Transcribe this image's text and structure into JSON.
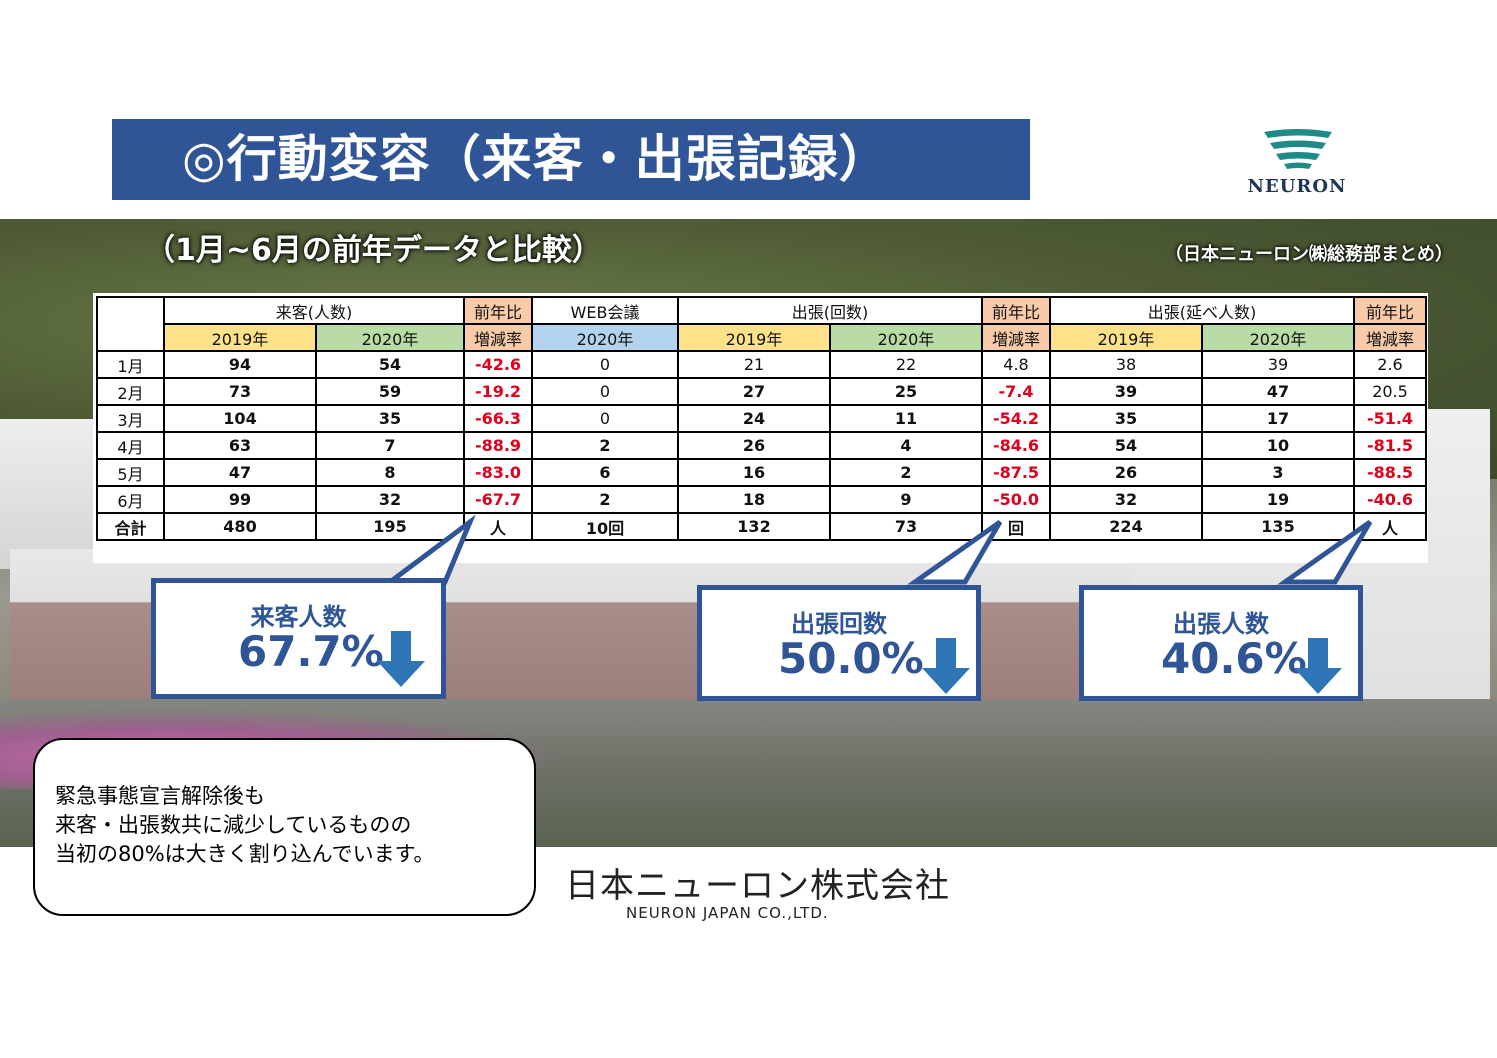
{
  "title": "◎行動変容（来客・出張記録）",
  "subtitle": "（1月~6月の前年データと比較）",
  "note": "（日本ニューロン㈱総務部まとめ）",
  "logo_text": "NEURON",
  "table": {
    "groups": {
      "visitors": "来客(人数)",
      "ratio": "前年比",
      "web": "WEB会議",
      "trips": "出張(回数)",
      "trip_people": "出張(延べ人数)"
    },
    "sub": {
      "y2019": "2019年",
      "y2020": "2020年",
      "rate": "増減率"
    },
    "rows": [
      {
        "month": "1月",
        "v19": "94",
        "v20": "54",
        "vr": "-42.6",
        "web": "0",
        "t19": "21",
        "t20": "22",
        "tr": "4.8",
        "p19": "38",
        "p20": "39",
        "pr": "2.6"
      },
      {
        "month": "2月",
        "v19": "73",
        "v20": "59",
        "vr": "-19.2",
        "web": "0",
        "t19": "27",
        "t20": "25",
        "tr": "-7.4",
        "p19": "39",
        "p20": "47",
        "pr": "20.5"
      },
      {
        "month": "3月",
        "v19": "104",
        "v20": "35",
        "vr": "-66.3",
        "web": "0",
        "t19": "24",
        "t20": "11",
        "tr": "-54.2",
        "p19": "35",
        "p20": "17",
        "pr": "-51.4"
      },
      {
        "month": "4月",
        "v19": "63",
        "v20": "7",
        "vr": "-88.9",
        "web": "2",
        "t19": "26",
        "t20": "4",
        "tr": "-84.6",
        "p19": "54",
        "p20": "10",
        "pr": "-81.5"
      },
      {
        "month": "5月",
        "v19": "47",
        "v20": "8",
        "vr": "-83.0",
        "web": "6",
        "t19": "16",
        "t20": "2",
        "tr": "-87.5",
        "p19": "26",
        "p20": "3",
        "pr": "-88.5"
      },
      {
        "month": "6月",
        "v19": "99",
        "v20": "32",
        "vr": "-67.7",
        "web": "2",
        "t19": "18",
        "t20": "9",
        "tr": "-50.0",
        "p19": "32",
        "p20": "19",
        "pr": "-40.6"
      }
    ],
    "total": {
      "label": "合計",
      "v19": "480",
      "v20": "195",
      "vr": "人",
      "web": "10回",
      "t19": "132",
      "t20": "73",
      "tr": "回",
      "p19": "224",
      "p20": "135",
      "pr": "人"
    }
  },
  "callouts": {
    "visitors": {
      "label": "来客人数",
      "value": "67.7%"
    },
    "trips": {
      "label": "出張回数",
      "value": "50.0%"
    },
    "people": {
      "label": "出張人数",
      "value": "40.6%"
    }
  },
  "comment": {
    "line1": "緊急事態宣言解除後も",
    "line2": "来客・出張数共に減少しているものの",
    "line3": "当初の80%は大きく割り込んでいます。"
  },
  "company": {
    "name_ja": "日本ニューロン株式会社",
    "name_en": "NEURON JAPAN CO.,LTD."
  },
  "colors": {
    "brand_blue": "#2f5597",
    "negative_red": "#e0001b",
    "header_2019": "#fde28a",
    "header_2020": "#b9dca6",
    "header_web": "#b4d3ef",
    "header_ratio": "#f8caa7",
    "logo_teal": "#1f8a8a"
  }
}
